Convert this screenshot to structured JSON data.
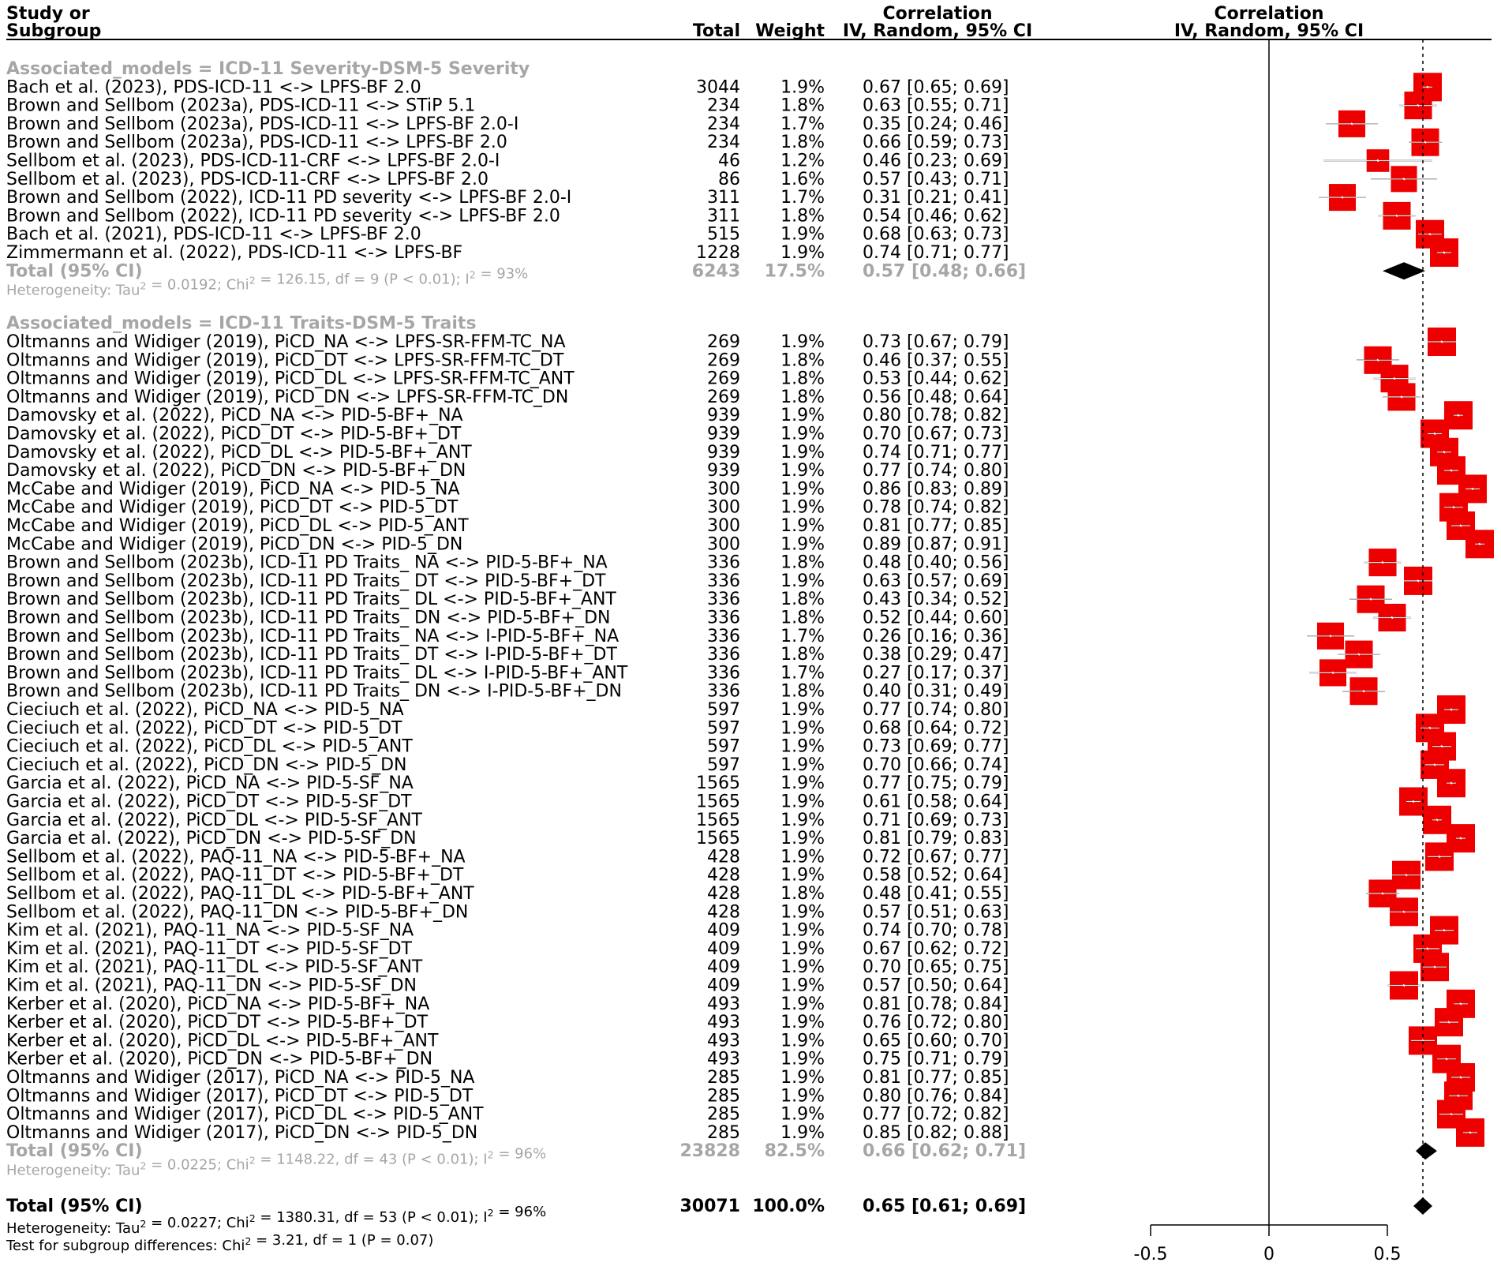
{
  "chart_data": {
    "type": "forest",
    "header": {
      "study_line1": "Study or",
      "study_line2": "Subgroup",
      "total": "Total",
      "weight": "Weight",
      "corr_line1": "Correlation",
      "corr_line2": "IV, Random, 95% CI",
      "plot_line1": "Correlation",
      "plot_line2": "IV, Random, 95% CI"
    },
    "groups": [
      {
        "label": "Associated_models = ICD-11 Severity-DSM-5 Severity",
        "studies": [
          {
            "name": "Bach et al. (2023), PDS-ICD-11 <-> LPFS-BF 2.0",
            "total": "3044",
            "weight": "1.9%",
            "ci_text": "0.67 [0.65; 0.69]",
            "est": 0.67,
            "lo": 0.65,
            "hi": 0.69,
            "w": 1.9
          },
          {
            "name": "Brown and Sellbom (2023a), PDS-ICD-11 <-> STiP 5.1",
            "total": "234",
            "weight": "1.8%",
            "ci_text": "0.63 [0.55; 0.71]",
            "est": 0.63,
            "lo": 0.55,
            "hi": 0.71,
            "w": 1.8
          },
          {
            "name": "Brown and Sellbom (2023a), PDS-ICD-11 <-> LPFS-BF 2.0-I",
            "total": "234",
            "weight": "1.7%",
            "ci_text": "0.35 [0.24; 0.46]",
            "est": 0.35,
            "lo": 0.24,
            "hi": 0.46,
            "w": 1.7
          },
          {
            "name": "Brown and Sellbom (2023a), PDS-ICD-11 <-> LPFS-BF 2.0",
            "total": "234",
            "weight": "1.8%",
            "ci_text": "0.66 [0.59; 0.73]",
            "est": 0.66,
            "lo": 0.59,
            "hi": 0.73,
            "w": 1.8
          },
          {
            "name": "Sellbom et al. (2023), PDS-ICD-11-CRF <-> LPFS-BF 2.0-I",
            "total": "46",
            "weight": "1.2%",
            "ci_text": "0.46 [0.23; 0.69]",
            "est": 0.46,
            "lo": 0.23,
            "hi": 0.69,
            "w": 1.2
          },
          {
            "name": "Sellbom et al. (2023), PDS-ICD-11-CRF <-> LPFS-BF 2.0",
            "total": "86",
            "weight": "1.6%",
            "ci_text": "0.57 [0.43; 0.71]",
            "est": 0.57,
            "lo": 0.43,
            "hi": 0.71,
            "w": 1.6
          },
          {
            "name": "Brown and Sellbom (2022), ICD-11 PD severity <-> LPFS-BF 2.0-I",
            "total": "311",
            "weight": "1.7%",
            "ci_text": "0.31 [0.21; 0.41]",
            "est": 0.31,
            "lo": 0.21,
            "hi": 0.41,
            "w": 1.7
          },
          {
            "name": "Brown and Sellbom (2022), ICD-11 PD severity <-> LPFS-BF 2.0",
            "total": "311",
            "weight": "1.8%",
            "ci_text": "0.54 [0.46; 0.62]",
            "est": 0.54,
            "lo": 0.46,
            "hi": 0.62,
            "w": 1.8
          },
          {
            "name": "Bach et al. (2021), PDS-ICD-11 <-> LPFS-BF 2.0",
            "total": "515",
            "weight": "1.9%",
            "ci_text": "0.68 [0.63; 0.73]",
            "est": 0.68,
            "lo": 0.63,
            "hi": 0.73,
            "w": 1.9
          },
          {
            "name": "Zimmermann et al. (2022), PDS-ICD-11 <-> LPFS-BF",
            "total": "1228",
            "weight": "1.9%",
            "ci_text": "0.74 [0.71; 0.77]",
            "est": 0.74,
            "lo": 0.71,
            "hi": 0.77,
            "w": 1.9
          }
        ],
        "total": {
          "label": "Total (95% CI)",
          "total": "6243",
          "weight": "17.5%",
          "ci_text": "0.57 [0.48; 0.66]",
          "est": 0.57,
          "lo": 0.48,
          "hi": 0.66
        },
        "heterogeneity": {
          "prefix": "Heterogeneity: Tau",
          "mid": " = 0.0192; Chi",
          "rest": " = 126.15, df = 9 (P < 0.01); I",
          "end": " = 93%"
        }
      },
      {
        "label": "Associated_models = ICD-11 Traits-DSM-5 Traits",
        "studies": [
          {
            "name": "Oltmanns and Widiger (2019), PiCD_NA <-> LPFS-SR-FFM-TC_NA",
            "total": "269",
            "weight": "1.9%",
            "ci_text": "0.73 [0.67; 0.79]",
            "est": 0.73,
            "lo": 0.67,
            "hi": 0.79,
            "w": 1.9
          },
          {
            "name": "Oltmanns and Widiger (2019), PiCD_DT <-> LPFS-SR-FFM-TC_DT",
            "total": "269",
            "weight": "1.8%",
            "ci_text": "0.46 [0.37; 0.55]",
            "est": 0.46,
            "lo": 0.37,
            "hi": 0.55,
            "w": 1.8
          },
          {
            "name": "Oltmanns and Widiger (2019), PiCD_DL <-> LPFS-SR-FFM-TC_ANT",
            "total": "269",
            "weight": "1.8%",
            "ci_text": "0.53 [0.44; 0.62]",
            "est": 0.53,
            "lo": 0.44,
            "hi": 0.62,
            "w": 1.8
          },
          {
            "name": "Oltmanns and Widiger (2019), PiCD_DN <-> LPFS-SR-FFM-TC_DN",
            "total": "269",
            "weight": "1.8%",
            "ci_text": "0.56 [0.48; 0.64]",
            "est": 0.56,
            "lo": 0.48,
            "hi": 0.64,
            "w": 1.8
          },
          {
            "name": "Damovsky et al. (2022), PiCD_NA <-> PID-5-BF+_NA",
            "total": "939",
            "weight": "1.9%",
            "ci_text": "0.80 [0.78; 0.82]",
            "est": 0.8,
            "lo": 0.78,
            "hi": 0.82,
            "w": 1.9
          },
          {
            "name": "Damovsky et al. (2022), PiCD_DT <-> PID-5-BF+_DT",
            "total": "939",
            "weight": "1.9%",
            "ci_text": "0.70 [0.67; 0.73]",
            "est": 0.7,
            "lo": 0.67,
            "hi": 0.73,
            "w": 1.9
          },
          {
            "name": "Damovsky et al. (2022), PiCD_DL <-> PID-5-BF+_ANT",
            "total": "939",
            "weight": "1.9%",
            "ci_text": "0.74 [0.71; 0.77]",
            "est": 0.74,
            "lo": 0.71,
            "hi": 0.77,
            "w": 1.9
          },
          {
            "name": "Damovsky et al. (2022), PiCD_DN <-> PID-5-BF+_DN",
            "total": "939",
            "weight": "1.9%",
            "ci_text": "0.77 [0.74; 0.80]",
            "est": 0.77,
            "lo": 0.74,
            "hi": 0.8,
            "w": 1.9
          },
          {
            "name": "McCabe and Widiger (2019), PiCD_NA <-> PID-5_NA",
            "total": "300",
            "weight": "1.9%",
            "ci_text": "0.86 [0.83; 0.89]",
            "est": 0.86,
            "lo": 0.83,
            "hi": 0.89,
            "w": 1.9
          },
          {
            "name": "McCabe and Widiger (2019), PiCD_DT <-> PID-5_DT",
            "total": "300",
            "weight": "1.9%",
            "ci_text": "0.78 [0.74; 0.82]",
            "est": 0.78,
            "lo": 0.74,
            "hi": 0.82,
            "w": 1.9
          },
          {
            "name": "McCabe and Widiger (2019), PiCD_DL <-> PID-5_ANT",
            "total": "300",
            "weight": "1.9%",
            "ci_text": "0.81 [0.77; 0.85]",
            "est": 0.81,
            "lo": 0.77,
            "hi": 0.85,
            "w": 1.9
          },
          {
            "name": "McCabe and Widiger (2019), PiCD_DN <-> PID-5_DN",
            "total": "300",
            "weight": "1.9%",
            "ci_text": "0.89 [0.87; 0.91]",
            "est": 0.89,
            "lo": 0.87,
            "hi": 0.91,
            "w": 1.9
          },
          {
            "name": "Brown and Sellbom (2023b), ICD-11 PD Traits_ NA <-> PID-5-BF+_NA",
            "total": "336",
            "weight": "1.8%",
            "ci_text": "0.48 [0.40; 0.56]",
            "est": 0.48,
            "lo": 0.4,
            "hi": 0.56,
            "w": 1.8
          },
          {
            "name": "Brown and Sellbom (2023b), ICD-11 PD Traits_ DT <-> PID-5-BF+_DT",
            "total": "336",
            "weight": "1.9%",
            "ci_text": "0.63 [0.57; 0.69]",
            "est": 0.63,
            "lo": 0.57,
            "hi": 0.69,
            "w": 1.9
          },
          {
            "name": "Brown and Sellbom (2023b), ICD-11 PD Traits_ DL <-> PID-5-BF+_ANT",
            "total": "336",
            "weight": "1.8%",
            "ci_text": "0.43 [0.34; 0.52]",
            "est": 0.43,
            "lo": 0.34,
            "hi": 0.52,
            "w": 1.8
          },
          {
            "name": "Brown and Sellbom (2023b), ICD-11 PD Traits_ DN <-> PID-5-BF+_DN",
            "total": "336",
            "weight": "1.8%",
            "ci_text": "0.52 [0.44; 0.60]",
            "est": 0.52,
            "lo": 0.44,
            "hi": 0.6,
            "w": 1.8
          },
          {
            "name": "Brown and Sellbom (2023b), ICD-11 PD Traits_ NA <-> I-PID-5-BF+_NA",
            "total": "336",
            "weight": "1.7%",
            "ci_text": "0.26 [0.16; 0.36]",
            "est": 0.26,
            "lo": 0.16,
            "hi": 0.36,
            "w": 1.7
          },
          {
            "name": "Brown and Sellbom (2023b), ICD-11 PD Traits_ DT <-> I-PID-5-BF+_DT",
            "total": "336",
            "weight": "1.8%",
            "ci_text": "0.38 [0.29; 0.47]",
            "est": 0.38,
            "lo": 0.29,
            "hi": 0.47,
            "w": 1.8
          },
          {
            "name": "Brown and Sellbom (2023b), ICD-11 PD Traits_ DL <-> I-PID-5-BF+_ANT",
            "total": "336",
            "weight": "1.7%",
            "ci_text": "0.27 [0.17; 0.37]",
            "est": 0.27,
            "lo": 0.17,
            "hi": 0.37,
            "w": 1.7
          },
          {
            "name": "Brown and Sellbom (2023b), ICD-11 PD Traits_ DN <-> I-PID-5-BF+_DN",
            "total": "336",
            "weight": "1.8%",
            "ci_text": "0.40 [0.31; 0.49]",
            "est": 0.4,
            "lo": 0.31,
            "hi": 0.49,
            "w": 1.8
          },
          {
            "name": "Cieciuch et al. (2022), PiCD_NA <-> PID-5_NA",
            "total": "597",
            "weight": "1.9%",
            "ci_text": "0.77 [0.74; 0.80]",
            "est": 0.77,
            "lo": 0.74,
            "hi": 0.8,
            "w": 1.9
          },
          {
            "name": "Cieciuch et al. (2022), PiCD_DT <-> PID-5_DT",
            "total": "597",
            "weight": "1.9%",
            "ci_text": "0.68 [0.64; 0.72]",
            "est": 0.68,
            "lo": 0.64,
            "hi": 0.72,
            "w": 1.9
          },
          {
            "name": "Cieciuch et al. (2022), PiCD_DL <-> PID-5_ANT",
            "total": "597",
            "weight": "1.9%",
            "ci_text": "0.73 [0.69; 0.77]",
            "est": 0.73,
            "lo": 0.69,
            "hi": 0.77,
            "w": 1.9
          },
          {
            "name": "Cieciuch et al. (2022), PiCD_DN <-> PID-5_DN",
            "total": "597",
            "weight": "1.9%",
            "ci_text": "0.70 [0.66; 0.74]",
            "est": 0.7,
            "lo": 0.66,
            "hi": 0.74,
            "w": 1.9
          },
          {
            "name": "Garcia et al. (2022), PiCD_NA <-> PID-5-SF_NA",
            "total": "1565",
            "weight": "1.9%",
            "ci_text": "0.77 [0.75; 0.79]",
            "est": 0.77,
            "lo": 0.75,
            "hi": 0.79,
            "w": 1.9
          },
          {
            "name": "Garcia et al. (2022), PiCD_DT <-> PID-5-SF_DT",
            "total": "1565",
            "weight": "1.9%",
            "ci_text": "0.61 [0.58; 0.64]",
            "est": 0.61,
            "lo": 0.58,
            "hi": 0.64,
            "w": 1.9
          },
          {
            "name": "Garcia et al. (2022), PiCD_DL <-> PID-5-SF_ANT",
            "total": "1565",
            "weight": "1.9%",
            "ci_text": "0.71 [0.69; 0.73]",
            "est": 0.71,
            "lo": 0.69,
            "hi": 0.73,
            "w": 1.9
          },
          {
            "name": "Garcia et al. (2022), PiCD_DN <-> PID-5-SF_DN",
            "total": "1565",
            "weight": "1.9%",
            "ci_text": "0.81 [0.79; 0.83]",
            "est": 0.81,
            "lo": 0.79,
            "hi": 0.83,
            "w": 1.9
          },
          {
            "name": "Sellbom et al. (2022), PAQ-11_NA <-> PID-5-BF+_NA",
            "total": "428",
            "weight": "1.9%",
            "ci_text": "0.72 [0.67; 0.77]",
            "est": 0.72,
            "lo": 0.67,
            "hi": 0.77,
            "w": 1.9
          },
          {
            "name": "Sellbom et al. (2022), PAQ-11_DT <-> PID-5-BF+_DT",
            "total": "428",
            "weight": "1.9%",
            "ci_text": "0.58 [0.52; 0.64]",
            "est": 0.58,
            "lo": 0.52,
            "hi": 0.64,
            "w": 1.9
          },
          {
            "name": "Sellbom et al. (2022), PAQ-11_DL <-> PID-5-BF+_ANT",
            "total": "428",
            "weight": "1.8%",
            "ci_text": "0.48 [0.41; 0.55]",
            "est": 0.48,
            "lo": 0.41,
            "hi": 0.55,
            "w": 1.8
          },
          {
            "name": "Sellbom et al. (2022), PAQ-11_DN <-> PID-5-BF+_DN",
            "total": "428",
            "weight": "1.9%",
            "ci_text": "0.57 [0.51; 0.63]",
            "est": 0.57,
            "lo": 0.51,
            "hi": 0.63,
            "w": 1.9
          },
          {
            "name": "Kim et al. (2021), PAQ-11_NA <-> PID-5-SF_NA",
            "total": "409",
            "weight": "1.9%",
            "ci_text": "0.74 [0.70; 0.78]",
            "est": 0.74,
            "lo": 0.7,
            "hi": 0.78,
            "w": 1.9
          },
          {
            "name": "Kim et al. (2021), PAQ-11_DT <-> PID-5-SF_DT",
            "total": "409",
            "weight": "1.9%",
            "ci_text": "0.67 [0.62; 0.72]",
            "est": 0.67,
            "lo": 0.62,
            "hi": 0.72,
            "w": 1.9
          },
          {
            "name": "Kim et al. (2021), PAQ-11_DL <-> PID-5-SF_ANT",
            "total": "409",
            "weight": "1.9%",
            "ci_text": "0.70 [0.65; 0.75]",
            "est": 0.7,
            "lo": 0.65,
            "hi": 0.75,
            "w": 1.9
          },
          {
            "name": "Kim et al. (2021), PAQ-11_DN <-> PID-5-SF_DN",
            "total": "409",
            "weight": "1.9%",
            "ci_text": "0.57 [0.50; 0.64]",
            "est": 0.57,
            "lo": 0.5,
            "hi": 0.64,
            "w": 1.9
          },
          {
            "name": "Kerber et al. (2020), PiCD_NA <-> PID-5-BF+_NA",
            "total": "493",
            "weight": "1.9%",
            "ci_text": "0.81 [0.78; 0.84]",
            "est": 0.81,
            "lo": 0.78,
            "hi": 0.84,
            "w": 1.9
          },
          {
            "name": "Kerber et al. (2020), PiCD_DT <-> PID-5-BF+_DT",
            "total": "493",
            "weight": "1.9%",
            "ci_text": "0.76 [0.72; 0.80]",
            "est": 0.76,
            "lo": 0.72,
            "hi": 0.8,
            "w": 1.9
          },
          {
            "name": "Kerber et al. (2020), PiCD_DL <-> PID-5-BF+_ANT",
            "total": "493",
            "weight": "1.9%",
            "ci_text": "0.65 [0.60; 0.70]",
            "est": 0.65,
            "lo": 0.6,
            "hi": 0.7,
            "w": 1.9
          },
          {
            "name": "Kerber et al. (2020), PiCD_DN <-> PID-5-BF+_DN",
            "total": "493",
            "weight": "1.9%",
            "ci_text": "0.75 [0.71; 0.79]",
            "est": 0.75,
            "lo": 0.71,
            "hi": 0.79,
            "w": 1.9
          },
          {
            "name": "Oltmanns and Widiger (2017), PiCD_NA <-> PID-5_NA",
            "total": "285",
            "weight": "1.9%",
            "ci_text": "0.81 [0.77; 0.85]",
            "est": 0.81,
            "lo": 0.77,
            "hi": 0.85,
            "w": 1.9
          },
          {
            "name": "Oltmanns and Widiger (2017), PiCD_DT <-> PID-5_DT",
            "total": "285",
            "weight": "1.9%",
            "ci_text": "0.80 [0.76; 0.84]",
            "est": 0.8,
            "lo": 0.76,
            "hi": 0.84,
            "w": 1.9
          },
          {
            "name": "Oltmanns and Widiger (2017), PiCD_DL <-> PID-5_ANT",
            "total": "285",
            "weight": "1.9%",
            "ci_text": "0.77 [0.72; 0.82]",
            "est": 0.77,
            "lo": 0.72,
            "hi": 0.82,
            "w": 1.9
          },
          {
            "name": "Oltmanns and Widiger (2017), PiCD_DN <-> PID-5_DN",
            "total": "285",
            "weight": "1.9%",
            "ci_text": "0.85 [0.82; 0.88]",
            "est": 0.85,
            "lo": 0.82,
            "hi": 0.88,
            "w": 1.9
          }
        ],
        "total": {
          "label": "Total (95% CI)",
          "total": "23828",
          "weight": "82.5%",
          "ci_text": "0.66 [0.62; 0.71]",
          "est": 0.66,
          "lo": 0.62,
          "hi": 0.71
        },
        "heterogeneity": {
          "prefix": "Heterogeneity: Tau",
          "mid": " = 0.0225; Chi",
          "rest": " = 1148.22, df = 43 (P < 0.01); I",
          "end": " = 96%"
        }
      }
    ],
    "overall": {
      "label": "Total (95% CI)",
      "total": "30071",
      "weight": "100.0%",
      "ci_text": "0.65 [0.61; 0.69]",
      "est": 0.65,
      "lo": 0.61,
      "hi": 0.69
    },
    "overall_heterogeneity": {
      "prefix": "Heterogeneity: Tau",
      "mid": " = 0.0227; Chi",
      "rest": " = 1380.31, df = 53 (P < 0.01); I",
      "end": " = 96%"
    },
    "subgroup_test": {
      "prefix": "Test for subgroup differences: Chi",
      "rest": " = 3.21, df = 1 (P = 0.07)"
    },
    "superscript": "2",
    "x_axis": {
      "ticks": [
        -0.5,
        0,
        0.5
      ],
      "tick_labels": [
        "-0.5",
        "0",
        "0.5"
      ],
      "range": [
        -0.5,
        0.5
      ]
    },
    "null_line": 0,
    "colors": {
      "square": "#ee0000",
      "text": "#000000",
      "gray": "#a6a6a6",
      "diamond": "#000000"
    }
  }
}
